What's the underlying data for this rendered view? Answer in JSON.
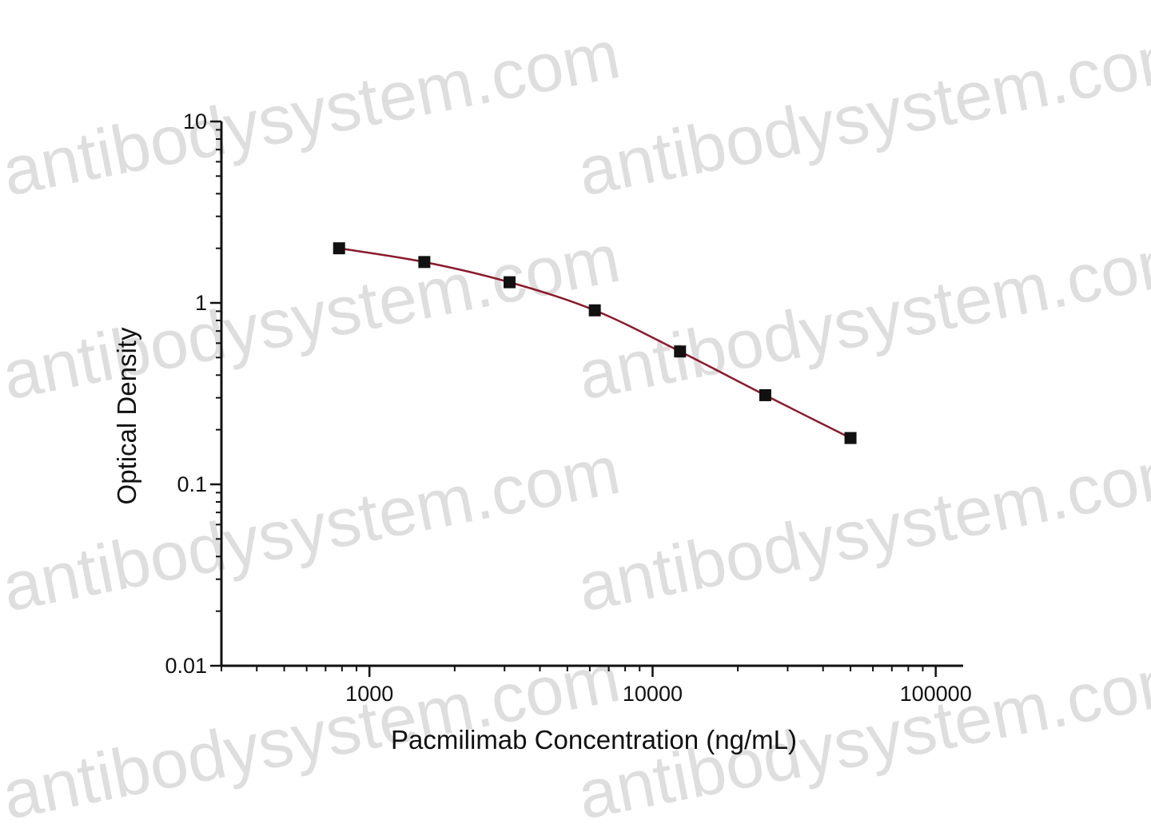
{
  "watermark": {
    "text": "antibodysystem.com",
    "color": "#d9d9d9"
  },
  "chart_data": {
    "type": "scatter",
    "xlabel": "Pacmilimab Concentration (ng/mL)",
    "ylabel": "Optical Density",
    "x_scale": "log",
    "y_scale": "log",
    "xlim": [
      300,
      125000
    ],
    "ylim": [
      0.01,
      10
    ],
    "x_ticks": [
      {
        "value": 1000,
        "label": "1000"
      },
      {
        "value": 10000,
        "label": "10000"
      },
      {
        "value": 100000,
        "label": "100000"
      }
    ],
    "y_ticks": [
      {
        "value": 10,
        "label": "10"
      },
      {
        "value": 1,
        "label": "1"
      },
      {
        "value": 0.1,
        "label": "0.1"
      },
      {
        "value": 0.01,
        "label": "0.01"
      }
    ],
    "grid": false,
    "series": [
      {
        "marker": "square",
        "marker_color": "#111111",
        "line_color": "#8b1a2b",
        "fit_curve": true,
        "x": [
          781.25,
          1562.5,
          3125,
          6250,
          12500,
          25000,
          50000
        ],
        "y": [
          2.0,
          1.68,
          1.3,
          0.91,
          0.54,
          0.31,
          0.18
        ]
      }
    ]
  }
}
